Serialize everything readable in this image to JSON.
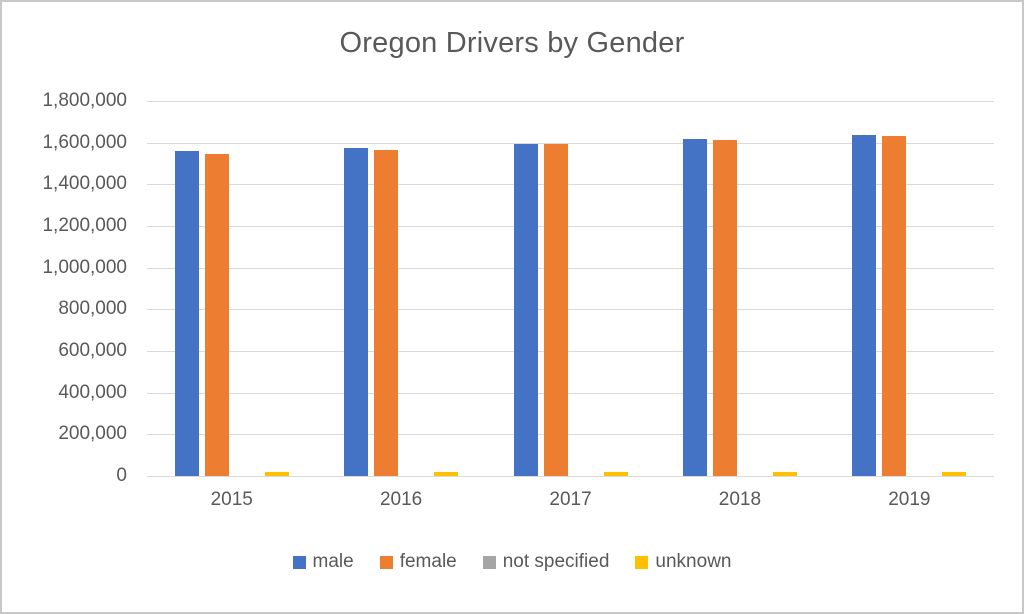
{
  "chart_data": {
    "type": "bar",
    "title": "Oregon Drivers by Gender",
    "categories": [
      "2015",
      "2016",
      "2017",
      "2018",
      "2019"
    ],
    "series": [
      {
        "name": "male",
        "color": "#4472C4",
        "values": [
          1562000,
          1574000,
          1596000,
          1617000,
          1637000
        ]
      },
      {
        "name": "female",
        "color": "#ED7D31",
        "values": [
          1546000,
          1567000,
          1592000,
          1613000,
          1633000
        ]
      },
      {
        "name": "not specified",
        "color": "#A5A5A5",
        "values": [
          0,
          0,
          0,
          0,
          0
        ]
      },
      {
        "name": "unknown",
        "color": "#FFC000",
        "values": [
          20000,
          20000,
          20000,
          20000,
          20000
        ]
      }
    ],
    "xlabel": "",
    "ylabel": "",
    "ylim": [
      0,
      1800000
    ],
    "ytick_step": 200000,
    "ytick_values": [
      0,
      200000,
      400000,
      600000,
      800000,
      1000000,
      1200000,
      1400000,
      1600000,
      1800000
    ],
    "ytick_labels": [
      "0",
      "200,000",
      "400,000",
      "600,000",
      "800,000",
      "1,000,000",
      "1,200,000",
      "1,400,000",
      "1,600,000",
      "1,800,000"
    ],
    "grid": true,
    "legend_position": "bottom"
  },
  "colors": {
    "title_text": "#595959",
    "axis_text": "#595959",
    "gridline": "#D9D9D9",
    "background": "#FFFFFF",
    "frame_border": "#C8C8C8"
  }
}
